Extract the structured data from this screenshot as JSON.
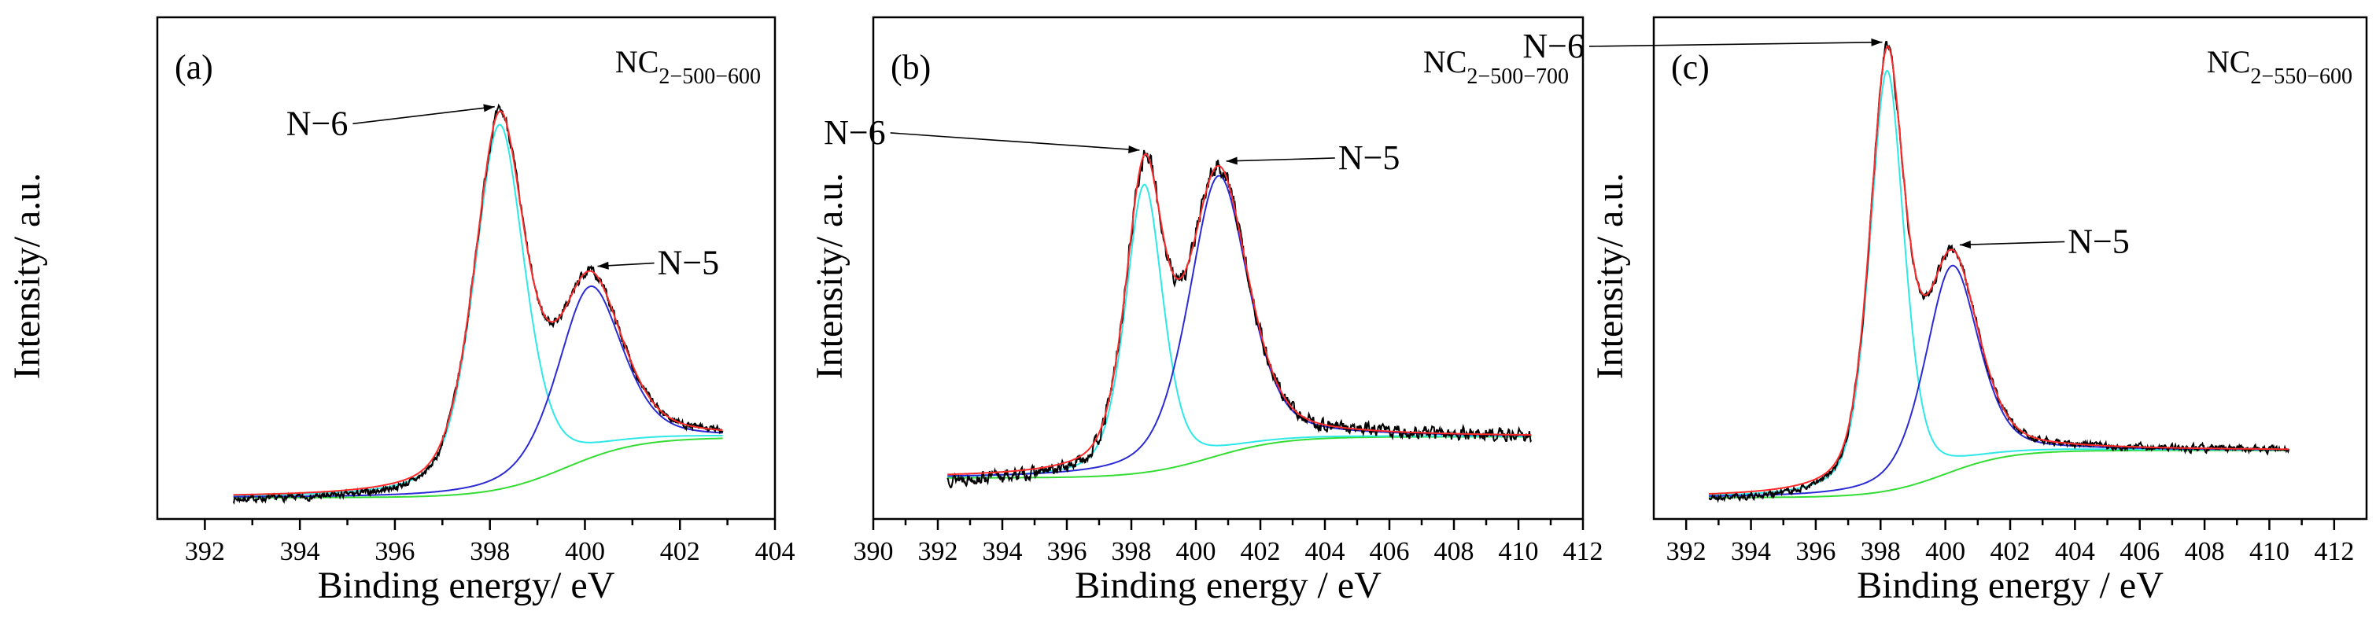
{
  "chart_data": [
    {
      "type": "line",
      "panel_label": "(a)",
      "sample": {
        "main": "NC",
        "sub": "2−500−600"
      },
      "xlabel": "Binding energy/ eV",
      "ylabel": "Intensity/ a.u.",
      "xlim": [
        391,
        404
      ],
      "ylim": [
        -0.05,
        1.12
      ],
      "xticks": [
        392,
        394,
        396,
        398,
        400,
        402,
        404
      ],
      "xrange": [
        392.6,
        402.9
      ],
      "peaks": [
        {
          "name": "N−6",
          "center": 398.2,
          "height": 0.85,
          "width": 0.55
        },
        {
          "name": "N−5",
          "center": 400.1,
          "height": 0.4,
          "width": 0.7
        }
      ],
      "baseline": {
        "low": 0.0,
        "high": 0.14,
        "mid": 399.6,
        "k": 1.3
      },
      "noise": 0.012,
      "seed": 7,
      "annotations": [
        {
          "text": "N−6",
          "peak": 0,
          "dx": -4,
          "dy": -0.08
        },
        {
          "text": "N−5",
          "peak": 1,
          "dx": 1.7,
          "dy": 0.0
        }
      ],
      "series": [
        {
          "name": "Experimental",
          "color": "#000000"
        },
        {
          "name": "Envelope fit",
          "color": "#ff2a2a"
        },
        {
          "name": "N-6 component",
          "color": "#2ee8e8"
        },
        {
          "name": "N-5 component",
          "color": "#2b2bd6"
        },
        {
          "name": "Background",
          "color": "#33dd33"
        }
      ]
    },
    {
      "type": "line",
      "panel_label": "(b)",
      "sample": {
        "main": "NC",
        "sub": "2−500−700"
      },
      "xlabel": "Binding energy / eV",
      "ylabel": "Intensity/ a.u.",
      "xlim": [
        390,
        412
      ],
      "ylim": [
        -0.1,
        1.12
      ],
      "xticks": [
        390,
        392,
        394,
        396,
        398,
        400,
        402,
        404,
        406,
        408,
        410,
        412
      ],
      "xrange": [
        392.3,
        410.4
      ],
      "peaks": [
        {
          "name": "N−6",
          "center": 398.4,
          "height": 0.7,
          "width": 0.6
        },
        {
          "name": "N−5",
          "center": 400.7,
          "height": 0.68,
          "width": 0.95
        }
      ],
      "baseline": {
        "low": 0.0,
        "high": 0.1,
        "mid": 400.5,
        "k": 0.9
      },
      "noise": 0.025,
      "seed": 13,
      "annotations": [
        {
          "text": "N−6",
          "peak": 0,
          "dx": -6,
          "dy": 0.0
        },
        {
          "text": "N−5",
          "peak": 1,
          "dx": 2.7,
          "dy": 0.0
        }
      ],
      "series": [
        {
          "name": "Experimental",
          "color": "#000000"
        },
        {
          "name": "Envelope fit",
          "color": "#ff2a2a"
        },
        {
          "name": "N-6 component",
          "color": "#2ee8e8"
        },
        {
          "name": "N-5 component",
          "color": "#2b2bd6"
        },
        {
          "name": "Background",
          "color": "#33dd33"
        }
      ]
    },
    {
      "type": "line",
      "panel_label": "(c)",
      "sample": {
        "main": "NC",
        "sub": "2−550−600"
      },
      "xlabel": "Binding energy / eV",
      "ylabel": "Intensity/ a.u.",
      "xlim": [
        391,
        413
      ],
      "ylim": [
        -0.05,
        1.12
      ],
      "xticks": [
        392,
        394,
        396,
        398,
        400,
        402,
        404,
        406,
        408,
        410,
        412
      ],
      "xrange": [
        392.7,
        410.6
      ],
      "peaks": [
        {
          "name": "N−6",
          "center": 398.2,
          "height": 0.98,
          "width": 0.55
        },
        {
          "name": "N−5",
          "center": 400.2,
          "height": 0.48,
          "width": 0.85
        }
      ],
      "baseline": {
        "low": 0.0,
        "high": 0.11,
        "mid": 400.0,
        "k": 1.0
      },
      "noise": 0.013,
      "seed": 21,
      "annotations": [
        {
          "text": "N−6",
          "peak": 0,
          "dx": -7,
          "dy": -0.05
        },
        {
          "text": "N−5",
          "peak": 1,
          "dx": 2.6,
          "dy": 0.0
        }
      ],
      "series": [
        {
          "name": "Experimental",
          "color": "#000000"
        },
        {
          "name": "Envelope fit",
          "color": "#ff2a2a"
        },
        {
          "name": "N-6 component",
          "color": "#2ee8e8"
        },
        {
          "name": "N-5 component",
          "color": "#2b2bd6"
        },
        {
          "name": "Background",
          "color": "#33dd33"
        }
      ]
    }
  ]
}
